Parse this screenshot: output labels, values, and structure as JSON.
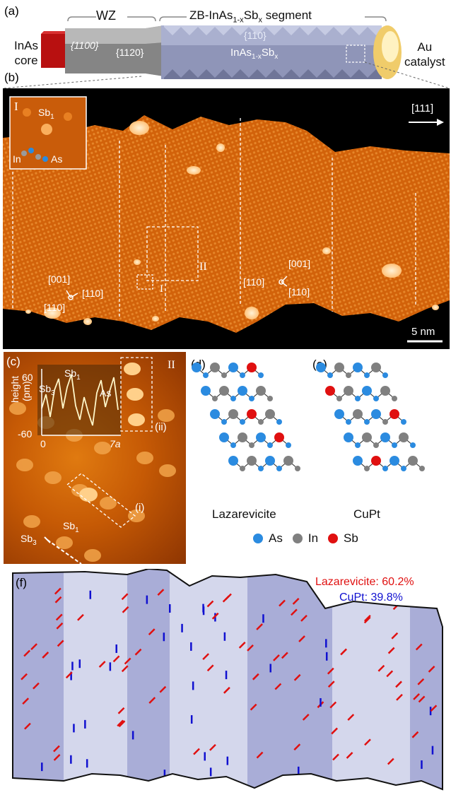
{
  "panel_a": {
    "label": "(a)",
    "wz": "WZ",
    "zb_segment": "ZB-InAs",
    "zb_sub": "1-x",
    "zb_sb": "Sb",
    "zb_subx": "x",
    "zb_tail": " segment",
    "core_line1": "InAs",
    "core_line2": "core",
    "facet_1100": "{1̅1̅00}",
    "facet_1100_text": "{1100}",
    "facet_1120": "{1120}",
    "facet_110": "{110}",
    "mid_label": "InAs",
    "mid_sub": "1-x",
    "mid_sb": "Sb",
    "mid_subx": "x",
    "au_line1": "Au",
    "au_line2": "catalyst"
  },
  "panel_b": {
    "label": "(b)",
    "inset_label": "I",
    "sb1": "Sb",
    "sb1_sub": "1",
    "in": "In",
    "as": "As",
    "direction": "[111]",
    "box2": "II",
    "box1": "I",
    "left_axes": {
      "up": "[001]",
      "left": "[110]",
      "right": "[110]"
    },
    "right_axes": {
      "up": "[001]",
      "left": "[110]",
      "right": "[110]"
    },
    "scale": "5 nm"
  },
  "panel_c": {
    "label": "(c)",
    "box_label": "II",
    "ylabel": "height",
    "yunit": "(pm)",
    "ytop": "60",
    "ybottom": "-60",
    "x0": "0",
    "xend": "7a",
    "sb3": "Sb",
    "sb3_sub": "3",
    "sb1": "Sb",
    "sb1_sub": "1",
    "as": "As",
    "i_label": "(i)",
    "ii_label": "(ii)"
  },
  "panel_d": {
    "label": "(d)",
    "title": "Lazarevicite"
  },
  "panel_e": {
    "label": "(e)",
    "title": "CuPt"
  },
  "legend": {
    "as": "As",
    "in": "In",
    "sb": "Sb"
  },
  "colors": {
    "as": "#2b8be0",
    "in": "#808080",
    "sb": "#e01010",
    "lazarevicite": "#e01010",
    "cupt": "#1010d0"
  },
  "panel_f": {
    "label": "(f)",
    "lazarevicite": "Lazarevicite: 60.2%",
    "cupt": "CuPt: 39.8%"
  },
  "chart_data": {
    "type": "table",
    "series": [
      {
        "name": "Lazarevicite",
        "values": [
          60.2
        ]
      },
      {
        "name": "CuPt",
        "values": [
          39.8
        ]
      }
    ]
  }
}
